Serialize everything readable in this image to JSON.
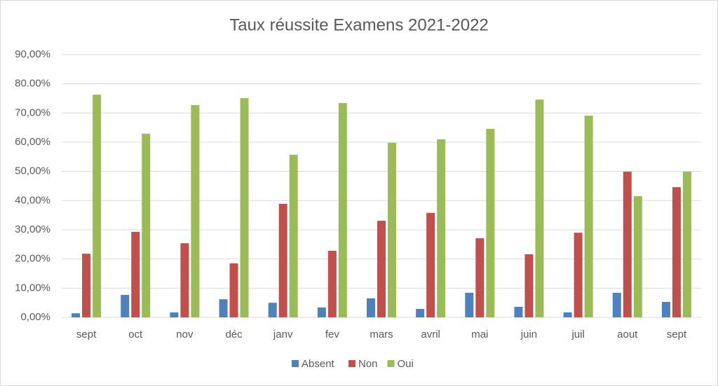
{
  "chart_data": {
    "type": "bar",
    "title": "Taux réussite Examens 2021-2022",
    "categories": [
      "sept",
      "oct",
      "nov",
      "déc",
      "janv",
      "fev",
      "mars",
      "avril",
      "mai",
      "juin",
      "juil",
      "aout",
      "sept"
    ],
    "series": [
      {
        "name": "Absent",
        "color": "#4f81bd",
        "values": [
          1.4,
          7.7,
          1.7,
          6.2,
          5.0,
          3.4,
          6.5,
          2.9,
          8.4,
          3.6,
          1.7,
          8.4,
          5.3
        ]
      },
      {
        "name": "Non",
        "color": "#c0504d",
        "values": [
          21.8,
          29.3,
          25.4,
          18.5,
          38.9,
          22.8,
          33.1,
          35.8,
          27.1,
          21.6,
          29.0,
          49.9,
          44.6
        ]
      },
      {
        "name": "Oui",
        "color": "#9bbb59",
        "values": [
          76.3,
          62.9,
          72.7,
          75.1,
          55.7,
          73.4,
          59.8,
          61.0,
          64.6,
          74.6,
          69.1,
          41.5,
          49.9
        ]
      }
    ],
    "ylim": [
      0,
      90
    ],
    "yticks": [
      {
        "value": 0,
        "label": "0,00%"
      },
      {
        "value": 10,
        "label": "10,00%"
      },
      {
        "value": 20,
        "label": "20,00%"
      },
      {
        "value": 30,
        "label": "30,00%"
      },
      {
        "value": 40,
        "label": "40,00%"
      },
      {
        "value": 50,
        "label": "50,00%"
      },
      {
        "value": 60,
        "label": "60,00%"
      },
      {
        "value": 70,
        "label": "70,00%"
      },
      {
        "value": 80,
        "label": "80.00%"
      },
      {
        "value": 90,
        "label": "90,00%"
      }
    ],
    "grid": true,
    "legend": "bottom"
  }
}
